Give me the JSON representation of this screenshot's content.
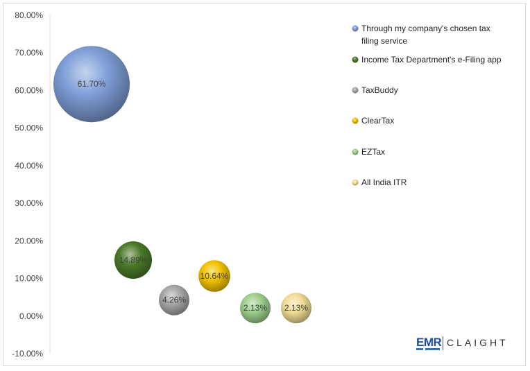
{
  "chart_data": {
    "type": "bubble",
    "title": "",
    "xlabel": "",
    "ylabel": "",
    "ylim": [
      -0.1,
      0.8
    ],
    "y_ticks": [
      "80.00%",
      "70.00%",
      "60.00%",
      "50.00%",
      "40.00%",
      "30.00%",
      "20.00%",
      "10.00%",
      "0.00%",
      "-10.00%"
    ],
    "grid": false,
    "legend_position": "right",
    "series": [
      {
        "name": "Through my company's chosen tax filing service",
        "x": 1,
        "y": 0.617,
        "size": 0.617,
        "label": "61.70%",
        "color": "#7f9fd8"
      },
      {
        "name": "Income Tax Department's e-Filing app",
        "x": 2,
        "y": 0.1489,
        "size": 0.1489,
        "label": "14.89%",
        "color": "#4a7a2a"
      },
      {
        "name": "TaxBuddy",
        "x": 3,
        "y": 0.0426,
        "size": 0.0426,
        "label": "4.26%",
        "color": "#a6a6a6"
      },
      {
        "name": "ClearTax",
        "x": 4,
        "y": 0.1064,
        "size": 0.1064,
        "label": "10.64%",
        "color": "#f2c200"
      },
      {
        "name": "EZTax",
        "x": 5,
        "y": 0.0213,
        "size": 0.0213,
        "label": "2.13%",
        "color": "#9dcf8b"
      },
      {
        "name": "All India ITR",
        "x": 6,
        "y": 0.0213,
        "size": 0.0213,
        "label": "2.13%",
        "color": "#f1dd95"
      }
    ]
  },
  "legend": {
    "items": [
      {
        "line1": "Through my company's chosen tax",
        "line2": "filing service"
      },
      {
        "line1": "Income Tax Department's e-Filing app",
        "line2": ""
      },
      {
        "line1": "TaxBuddy",
        "line2": ""
      },
      {
        "line1": "ClearTax",
        "line2": ""
      },
      {
        "line1": "EZTax",
        "line2": ""
      },
      {
        "line1": "All India ITR",
        "line2": ""
      }
    ]
  },
  "logo": {
    "left": "EMR",
    "right": "CLAIGHT"
  }
}
